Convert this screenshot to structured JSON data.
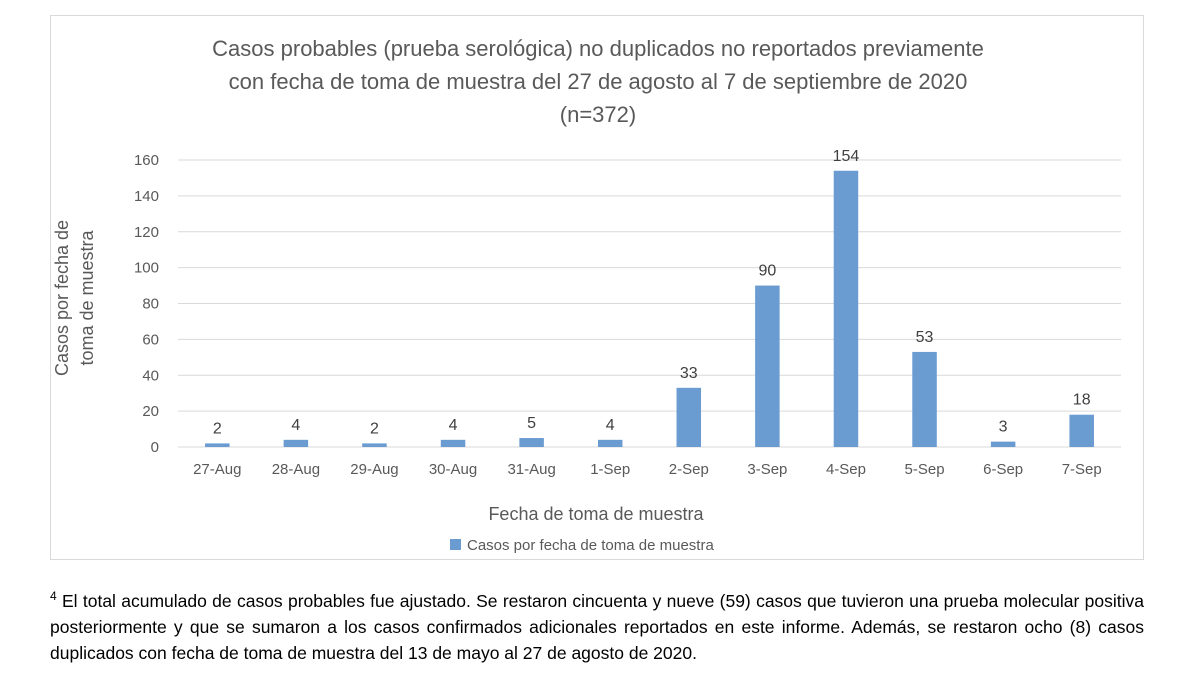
{
  "chart_data": {
    "type": "bar",
    "title": [
      "Casos probables (prueba serológica) no duplicados no reportados previamente",
      "con fecha de toma de muestra del 27 de agosto al 7 de septiembre de 2020",
      "(n=372)"
    ],
    "categories": [
      "27-Aug",
      "28-Aug",
      "29-Aug",
      "30-Aug",
      "31-Aug",
      "1-Sep",
      "2-Sep",
      "3-Sep",
      "4-Sep",
      "5-Sep",
      "6-Sep",
      "7-Sep"
    ],
    "series": [
      {
        "name": "Casos por fecha de toma de muestra",
        "values": [
          2,
          4,
          2,
          4,
          5,
          4,
          33,
          90,
          154,
          53,
          3,
          18
        ],
        "color": "#6a9bd1"
      }
    ],
    "ylabel": [
      "Casos por fecha de",
      "toma de muestra"
    ],
    "xlabel": "Fecha de toma de muestra",
    "ylim": [
      0,
      160
    ],
    "yticks": [
      0,
      20,
      40,
      60,
      80,
      100,
      120,
      140,
      160
    ],
    "grid": true,
    "legend_position": "bottom",
    "data_labels": true
  },
  "footnote": {
    "marker": "4",
    "text": " El total acumulado de casos probables fue ajustado. Se restaron cincuenta y nueve (59) casos que tuvieron una prueba molecular positiva posteriormente y que se sumaron a los casos confirmados adicionales reportados en este informe. Además, se restaron ocho (8) casos duplicados con fecha de toma de muestra del 13 de mayo al 27 de agosto de 2020."
  }
}
